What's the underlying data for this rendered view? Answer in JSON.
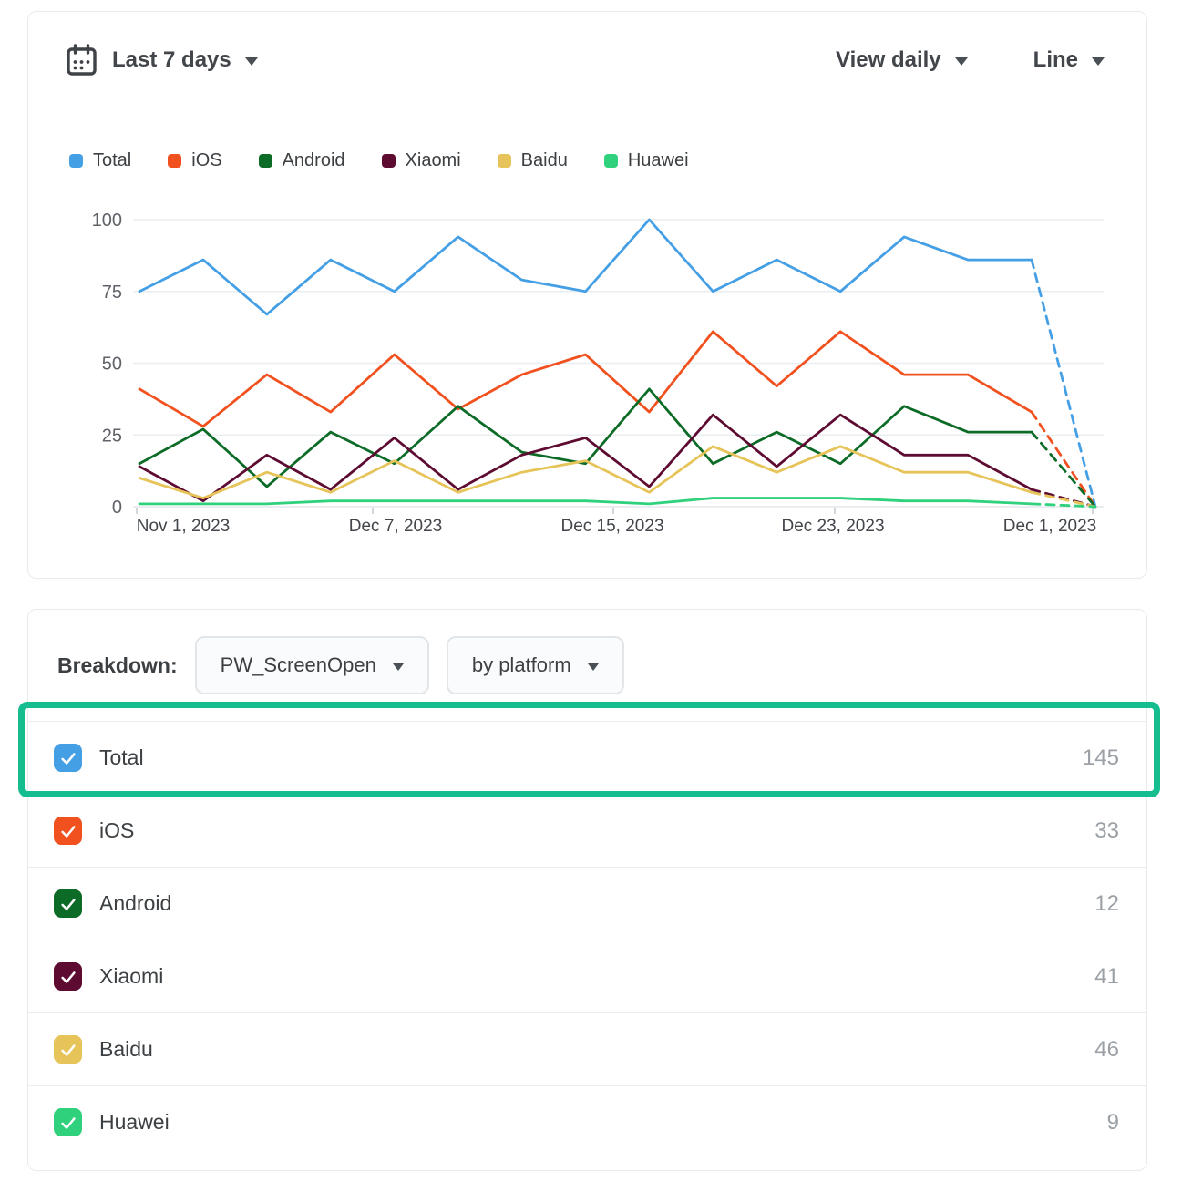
{
  "topbar": {
    "date_range": "Last 7 days",
    "view_mode": "View daily",
    "chart_type": "Line"
  },
  "chart_data": {
    "type": "line",
    "title": "",
    "xlabel": "",
    "ylabel": "",
    "ylim": [
      0,
      100
    ],
    "y_ticks": [
      0,
      25,
      50,
      75,
      100
    ],
    "grid": true,
    "legend_position": "top",
    "dashed_last_segment": true,
    "x_labels": [
      "Nov 1, 2023",
      "Dec 7, 2023",
      "Dec 15, 2023",
      "Dec 23, 2023",
      "Dec 1, 2023"
    ],
    "series": [
      {
        "name": "Total",
        "color": "#459fe5",
        "values": [
          75,
          86,
          67,
          86,
          75,
          94,
          79,
          75,
          100,
          75,
          86,
          75,
          94,
          86,
          86,
          0
        ]
      },
      {
        "name": "iOS",
        "color": "#f1511f",
        "values": [
          41,
          28,
          46,
          33,
          53,
          34,
          46,
          53,
          33,
          61,
          42,
          61,
          46,
          46,
          33,
          0
        ]
      },
      {
        "name": "Android",
        "color": "#0c6b26",
        "values": [
          15,
          27,
          7,
          26,
          15,
          35,
          19,
          15,
          41,
          15,
          26,
          15,
          35,
          26,
          26,
          0
        ]
      },
      {
        "name": "Xiaomi",
        "color": "#5e0b31",
        "values": [
          14,
          2,
          18,
          6,
          24,
          6,
          18,
          24,
          7,
          32,
          14,
          32,
          18,
          18,
          6,
          0
        ]
      },
      {
        "name": "Baidu",
        "color": "#e6c45a",
        "values": [
          10,
          3,
          12,
          5,
          16,
          5,
          12,
          16,
          5,
          21,
          12,
          21,
          12,
          12,
          5,
          0
        ]
      },
      {
        "name": "Huawei",
        "color": "#30d17c",
        "values": [
          1,
          1,
          1,
          2,
          2,
          2,
          2,
          2,
          1,
          3,
          3,
          3,
          2,
          2,
          1,
          0
        ]
      }
    ]
  },
  "breakdown": {
    "label": "Breakdown:",
    "event_selector": "PW_ScreenOpen",
    "dimension_selector": "by platform",
    "rows": [
      {
        "label": "Total",
        "value": "145",
        "color": "#459fe5",
        "checked": true,
        "highlighted": true
      },
      {
        "label": "iOS",
        "value": "33",
        "color": "#f1511f",
        "checked": true,
        "highlighted": false
      },
      {
        "label": "Android",
        "value": "12",
        "color": "#0c6b26",
        "checked": true,
        "highlighted": false
      },
      {
        "label": "Xiaomi",
        "value": "41",
        "color": "#5e0b31",
        "checked": true,
        "highlighted": false
      },
      {
        "label": "Baidu",
        "value": "46",
        "color": "#e6c45a",
        "checked": true,
        "highlighted": false
      },
      {
        "label": "Huawei",
        "value": "9",
        "color": "#30d17c",
        "checked": true,
        "highlighted": false
      }
    ]
  },
  "annotation": {
    "highlight_color": "#16bd8e",
    "target_row": "Total"
  }
}
